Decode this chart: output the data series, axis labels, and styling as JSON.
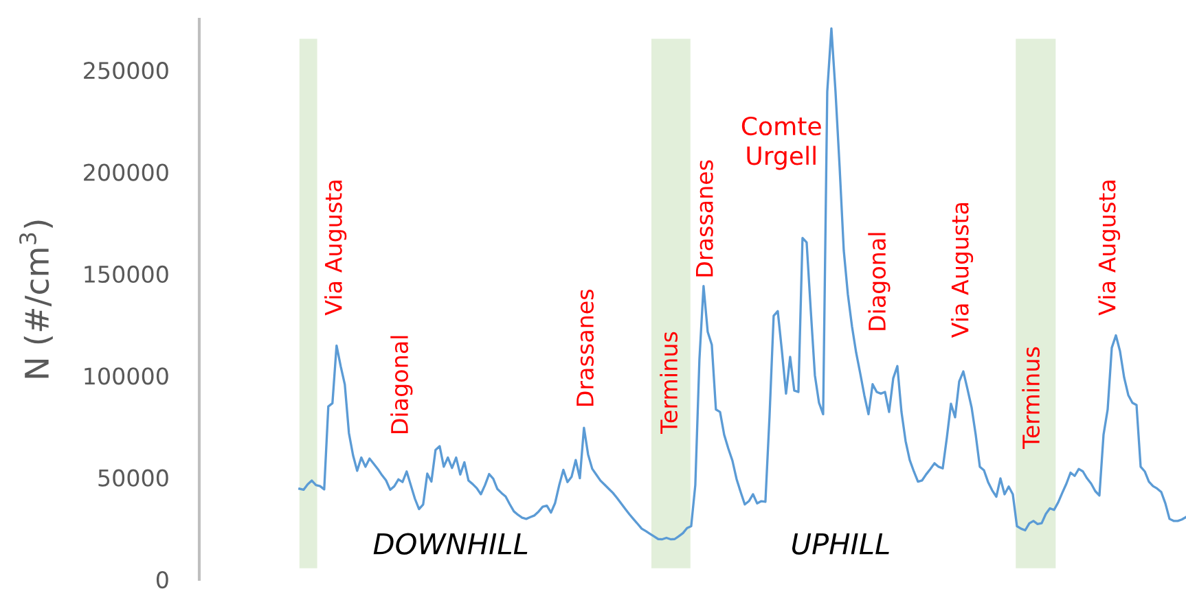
{
  "chart_data": {
    "type": "line",
    "ylabel": "N (#/cm$^{3}$)",
    "ylim": [
      0,
      275000
    ],
    "yticks": [
      0,
      50000,
      100000,
      150000,
      200000,
      250000
    ],
    "tick_labels": "y",
    "grid": false,
    "marker": "none",
    "line_style": "solid",
    "categories": [
      null,
      null,
      null,
      null,
      null,
      null,
      null,
      null,
      null,
      null,
      null,
      null,
      null,
      null,
      null,
      null,
      null,
      null,
      null,
      null,
      null,
      null,
      null,
      null,
      null,
      null,
      null,
      null,
      null,
      null,
      null,
      null,
      null,
      null,
      null,
      null,
      null,
      null,
      null,
      null,
      null,
      null,
      null,
      null,
      null,
      null,
      null,
      null,
      null,
      null,
      null,
      null,
      null,
      null,
      null,
      null,
      null,
      null,
      null,
      null,
      null,
      null,
      null,
      null,
      null,
      null,
      null,
      null,
      null,
      null,
      null,
      null,
      null,
      null,
      null,
      null,
      null,
      null,
      null,
      null,
      null,
      null,
      null,
      null,
      null,
      null,
      null,
      null,
      null,
      null,
      null,
      null,
      null,
      null,
      null,
      null,
      null,
      null,
      null,
      null,
      null,
      null,
      null,
      null,
      null,
      null,
      null,
      null,
      null,
      null,
      null,
      null,
      null,
      null,
      null,
      null,
      null,
      null,
      null,
      null,
      null,
      null,
      null,
      null,
      null,
      null,
      null,
      null,
      null,
      null,
      null,
      null,
      null,
      null,
      null,
      null,
      null,
      null,
      null,
      null,
      null,
      null,
      null,
      null,
      null,
      null,
      null,
      null,
      null,
      null,
      null,
      null,
      null,
      null,
      null,
      null,
      null,
      null,
      null,
      null,
      null,
      null,
      null,
      null,
      null,
      null,
      null,
      null,
      null,
      null,
      null,
      null,
      null,
      null,
      null,
      null,
      null,
      null,
      null,
      null,
      null,
      null,
      null,
      null,
      null,
      null,
      null,
      null,
      null,
      null,
      null,
      null,
      null,
      null,
      null,
      null,
      null,
      null,
      null,
      null,
      null,
      null,
      null,
      null,
      null,
      null,
      null,
      null,
      null,
      null,
      null,
      null,
      null,
      null,
      null,
      null
    ],
    "series": [
      {
        "color": "#5b9bd5",
        "values": [
          44500,
          44000,
          46700,
          48500,
          46300,
          45800,
          44200,
          84900,
          86500,
          114800,
          104700,
          95700,
          71800,
          60900,
          53300,
          59800,
          55300,
          59300,
          56800,
          54200,
          51200,
          48600,
          44000,
          45700,
          49100,
          47800,
          53000,
          46300,
          39600,
          34500,
          36800,
          51900,
          48000,
          63500,
          65400,
          55300,
          59800,
          54700,
          59800,
          51500,
          57500,
          48500,
          46800,
          44800,
          41800,
          46300,
          51700,
          49400,
          44400,
          42400,
          40700,
          36900,
          33400,
          31700,
          30300,
          29700,
          30600,
          31400,
          33300,
          35700,
          36200,
          32800,
          37500,
          46300,
          53800,
          47800,
          50400,
          58600,
          49700,
          74400,
          61300,
          54300,
          51400,
          48500,
          46500,
          44500,
          42500,
          40000,
          37300,
          34600,
          32000,
          29600,
          27300,
          24900,
          23700,
          22400,
          21100,
          19800,
          19700,
          20400,
          19700,
          19800,
          21200,
          22700,
          25200,
          26100,
          46300,
          108000,
          144000,
          121600,
          115200,
          83400,
          82200,
          71000,
          64300,
          58300,
          49300,
          42900,
          36800,
          38400,
          41800,
          37300,
          38400,
          38100,
          80000,
          129400,
          131700,
          112200,
          91200,
          109200,
          92700,
          92000,
          167600,
          165400,
          132200,
          100200,
          86700,
          81100,
          239500,
          270500,
          239500,
          202400,
          161600,
          139900,
          124200,
          111400,
          101100,
          90300,
          81100,
          95800,
          92000,
          91200,
          92000,
          82200,
          98700,
          104700,
          82200,
          67900,
          58600,
          53000,
          48000,
          48600,
          51600,
          54200,
          57000,
          55300,
          54500,
          69500,
          86200,
          79600,
          97200,
          102100,
          93500,
          84500,
          71000,
          55300,
          53600,
          47800,
          43700,
          40600,
          49600,
          41800,
          45600,
          41800,
          26100,
          24900,
          24100,
          27500,
          28700,
          27200,
          27600,
          32100,
          34900,
          34100,
          37800,
          42500,
          47000,
          52400,
          50800,
          54200,
          53000,
          49600,
          47000,
          43300,
          41200,
          71000,
          83400,
          113700,
          119800,
          112000,
          99100,
          90500,
          86700,
          85600,
          55300,
          53000,
          48000,
          45800,
          44600,
          42900,
          37300,
          29700,
          28700,
          28700,
          29400,
          30600
        ]
      }
    ],
    "annotations": [
      "Via Augusta",
      "Diagonal",
      "Drassanes",
      "Terminus",
      "Drassanes",
      "Comte\nUrgell",
      "Diagonal",
      "Via Augusta",
      "Terminus",
      "Via Augusta",
      "DOWNHILL",
      "UPHILL"
    ]
  }
}
